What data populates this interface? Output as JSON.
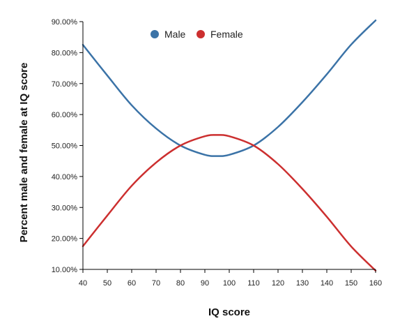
{
  "chart_data": {
    "type": "line",
    "title": "",
    "xlabel": "IQ score",
    "ylabel": "Percent male and female at IQ score",
    "xlim": [
      40,
      160
    ],
    "ylim": [
      10,
      90
    ],
    "x_ticks": [
      40,
      50,
      60,
      70,
      80,
      90,
      100,
      110,
      120,
      130,
      140,
      150,
      160
    ],
    "y_ticks": [
      "10.00%",
      "20.00%",
      "30.00%",
      "40.00%",
      "50.00%",
      "60.00%",
      "70.00%",
      "80.00%",
      "90.00%"
    ],
    "y_tick_values": [
      10,
      20,
      30,
      40,
      50,
      60,
      70,
      80,
      90
    ],
    "grid": false,
    "legend_position": "top",
    "x": [
      40,
      50,
      60,
      70,
      80,
      90,
      95,
      100,
      110,
      120,
      130,
      140,
      150,
      160
    ],
    "series": [
      {
        "name": "Male",
        "color": "#3b73a7",
        "values": [
          82.5,
          72.6,
          63.0,
          55.5,
          50.0,
          47.0,
          46.6,
          47.0,
          50.0,
          56.0,
          64.0,
          73.0,
          82.6,
          90.4
        ]
      },
      {
        "name": "Female",
        "color": "#cc2f2f",
        "values": [
          17.5,
          27.4,
          37.0,
          44.5,
          50.0,
          53.0,
          53.4,
          53.0,
          50.0,
          44.0,
          36.0,
          27.0,
          17.4,
          9.6
        ]
      }
    ]
  }
}
